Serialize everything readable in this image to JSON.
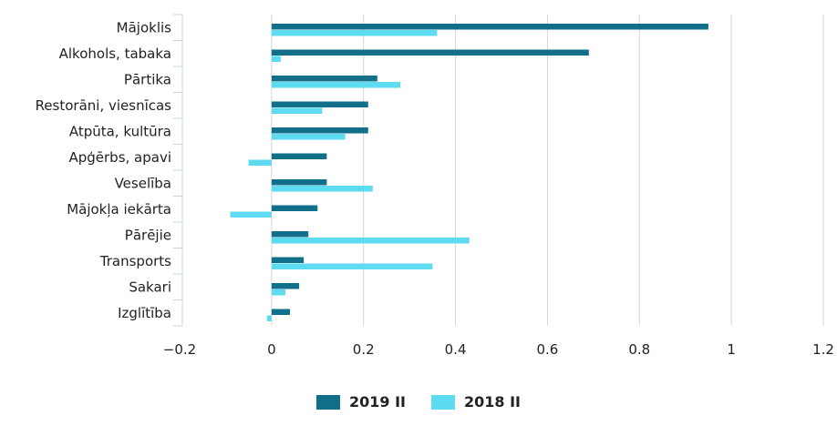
{
  "chart_data": {
    "type": "bar",
    "orientation": "horizontal",
    "categories": [
      "Mājoklis",
      "Alkohols, tabaka",
      "Pārtika",
      "Restorāni, viesnīcas",
      "Atpūta, kultūra",
      "Apģērbs, apavi",
      "Veselība",
      "Mājokļa iekārta",
      "Pārējie",
      "Transports",
      "Sakari",
      "Izglītība"
    ],
    "series": [
      {
        "name": "2019 II",
        "color": "#116f8a",
        "values": [
          0.95,
          0.69,
          0.23,
          0.21,
          0.21,
          0.12,
          0.12,
          0.1,
          0.08,
          0.07,
          0.06,
          0.04
        ]
      },
      {
        "name": "2018 II",
        "color": "#5ddbf0",
        "values": [
          0.36,
          0.02,
          0.28,
          0.11,
          0.16,
          -0.05,
          0.22,
          -0.09,
          0.43,
          0.35,
          0.03,
          -0.01
        ]
      }
    ],
    "xlim": [
      -0.2,
      1.2
    ],
    "xticks": [
      "−0.2",
      "0",
      "0.2",
      "0.4",
      "0.6",
      "0.8",
      "1",
      "1.2"
    ],
    "grid": true,
    "legend_position": "bottom-center",
    "title": "",
    "xlabel": "",
    "ylabel": ""
  }
}
